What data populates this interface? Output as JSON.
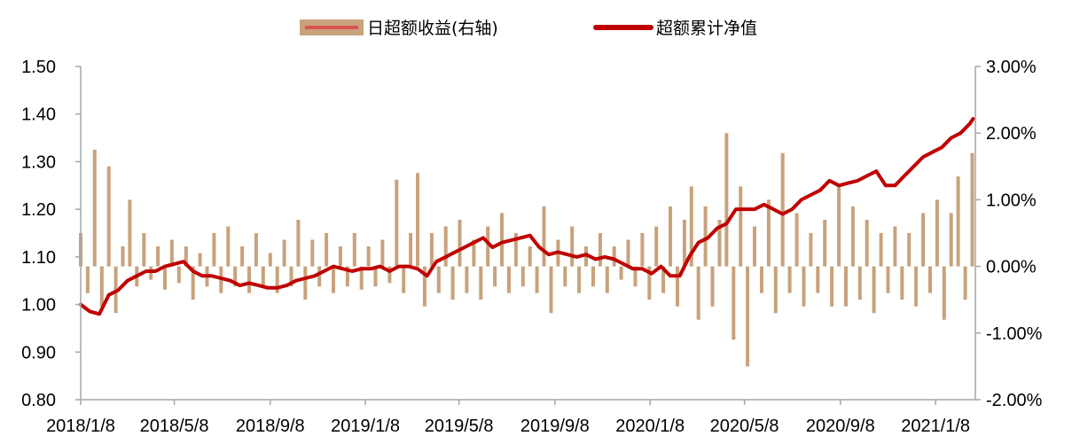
{
  "chart_data": {
    "type": "line",
    "title": "",
    "legend": {
      "placement": "top-center",
      "entries": [
        {
          "label": "日超额收益(右轴)",
          "series": "daily_excess_return"
        },
        {
          "label": "超额累计净值",
          "series": "cumulative_excess_nav"
        }
      ]
    },
    "x_axis": {
      "type": "date",
      "range": [
        "2018-01-08",
        "2021-02-28"
      ],
      "tick_dates": [
        "2018-01-08",
        "2018-05-08",
        "2018-09-08",
        "2019-01-08",
        "2019-05-08",
        "2019-09-08",
        "2020-01-08",
        "2020-05-08",
        "2020-09-08",
        "2021-01-08"
      ],
      "tick_labels": [
        "2018/1/8",
        "2018/5/8",
        "2018/9/8",
        "2019/1/8",
        "2019/5/8",
        "2019/9/8",
        "2020/1/8",
        "2020/5/8",
        "2020/9/8",
        "2021/1/8"
      ]
    },
    "y_left": {
      "range": [
        0.8,
        1.5
      ],
      "tick_values": [
        0.8,
        0.9,
        1.0,
        1.1,
        1.2,
        1.3,
        1.4,
        1.5
      ],
      "tick_labels": [
        "0.80",
        "0.90",
        "1.00",
        "1.10",
        "1.20",
        "1.30",
        "1.40",
        "1.50"
      ]
    },
    "y_right": {
      "range": [
        -2.0,
        3.0
      ],
      "unit": "%",
      "tick_values": [
        -2,
        -1,
        0,
        1,
        2,
        3
      ],
      "tick_labels": [
        "-2.00%",
        "-1.00%",
        "0.00%",
        "1.00%",
        "2.00%",
        "3.00%"
      ]
    },
    "grid": false,
    "series": [
      {
        "name": "日超额收益(右轴)",
        "type": "bar",
        "axis": "right",
        "color": "#C8A27C",
        "note": "approximate; daily excess return in %",
        "x": [
          "2018-01-08",
          "2018-01-17",
          "2018-01-26",
          "2018-02-04",
          "2018-02-13",
          "2018-02-22",
          "2018-03-03",
          "2018-03-12",
          "2018-03-21",
          "2018-03-30",
          "2018-04-08",
          "2018-04-17",
          "2018-04-26",
          "2018-05-05",
          "2018-05-14",
          "2018-05-23",
          "2018-06-01",
          "2018-06-10",
          "2018-06-19",
          "2018-06-28",
          "2018-07-07",
          "2018-07-16",
          "2018-07-25",
          "2018-08-03",
          "2018-08-12",
          "2018-08-21",
          "2018-08-30",
          "2018-09-08",
          "2018-09-17",
          "2018-09-26",
          "2018-10-05",
          "2018-10-14",
          "2018-10-23",
          "2018-11-01",
          "2018-11-10",
          "2018-11-19",
          "2018-11-28",
          "2018-12-07",
          "2018-12-16",
          "2018-12-25",
          "2019-01-03",
          "2019-01-12",
          "2019-01-21",
          "2019-01-30",
          "2019-02-08",
          "2019-02-17",
          "2019-02-26",
          "2019-03-07",
          "2019-03-16",
          "2019-03-25",
          "2019-04-03",
          "2019-04-12",
          "2019-04-21",
          "2019-04-30",
          "2019-05-09",
          "2019-05-18",
          "2019-05-27",
          "2019-06-05",
          "2019-06-14",
          "2019-06-23",
          "2019-07-02",
          "2019-07-11",
          "2019-07-20",
          "2019-07-29",
          "2019-08-07",
          "2019-08-16",
          "2019-08-25",
          "2019-09-03",
          "2019-09-12",
          "2019-09-21",
          "2019-09-30",
          "2019-10-09",
          "2019-10-18",
          "2019-10-27",
          "2019-11-05",
          "2019-11-14",
          "2019-11-23",
          "2019-12-02",
          "2019-12-11",
          "2019-12-20",
          "2019-12-29",
          "2020-01-07",
          "2020-01-16",
          "2020-01-25",
          "2020-02-03",
          "2020-02-12",
          "2020-02-21",
          "2020-03-01",
          "2020-03-10",
          "2020-03-19",
          "2020-03-28",
          "2020-04-06",
          "2020-04-15",
          "2020-04-24",
          "2020-05-03",
          "2020-05-12",
          "2020-05-21",
          "2020-05-30",
          "2020-06-08",
          "2020-06-17",
          "2020-06-26",
          "2020-07-05",
          "2020-07-14",
          "2020-07-23",
          "2020-08-01",
          "2020-08-10",
          "2020-08-19",
          "2020-08-28",
          "2020-09-06",
          "2020-09-15",
          "2020-09-24",
          "2020-10-03",
          "2020-10-12",
          "2020-10-21",
          "2020-10-30",
          "2020-11-08",
          "2020-11-17",
          "2020-11-26",
          "2020-12-05",
          "2020-12-14",
          "2020-12-23",
          "2021-01-01",
          "2021-01-10",
          "2021-01-19",
          "2021-01-28",
          "2021-02-06",
          "2021-02-15",
          "2021-02-24"
        ],
        "values": [
          0.5,
          -0.4,
          1.75,
          -0.6,
          1.5,
          -0.7,
          0.3,
          1.0,
          -0.3,
          0.5,
          -0.2,
          0.3,
          -0.35,
          0.4,
          -0.25,
          0.3,
          -0.5,
          0.2,
          -0.3,
          0.5,
          -0.4,
          0.6,
          -0.3,
          0.3,
          -0.4,
          0.5,
          -0.3,
          0.2,
          -0.4,
          0.4,
          -0.3,
          0.7,
          -0.5,
          0.4,
          -0.3,
          0.5,
          -0.4,
          0.3,
          -0.3,
          0.5,
          -0.35,
          0.3,
          -0.3,
          0.4,
          -0.25,
          1.3,
          -0.4,
          0.5,
          1.4,
          -0.6,
          0.5,
          -0.4,
          0.6,
          -0.5,
          0.7,
          -0.4,
          0.4,
          -0.5,
          0.6,
          -0.3,
          0.8,
          -0.4,
          0.5,
          -0.3,
          0.3,
          -0.4,
          0.9,
          -0.7,
          0.4,
          -0.3,
          0.6,
          -0.4,
          0.3,
          -0.3,
          0.5,
          -0.4,
          0.3,
          -0.2,
          0.4,
          -0.3,
          0.5,
          -0.5,
          0.6,
          -0.4,
          0.9,
          -0.6,
          0.7,
          1.2,
          -0.8,
          0.9,
          -0.6,
          0.7,
          2.0,
          -1.1,
          1.2,
          -1.5,
          0.6,
          -0.4,
          1.0,
          -0.7,
          1.7,
          -0.4,
          0.8,
          -0.6,
          0.5,
          -0.4,
          0.7,
          -0.6,
          1.2,
          -0.6,
          0.9,
          -0.5,
          0.7,
          -0.7,
          0.5,
          -0.4,
          0.6,
          -0.5,
          0.5,
          -0.6,
          0.8,
          -0.4,
          1.0,
          -0.8,
          0.8,
          1.35,
          -0.5,
          1.7
        ]
      },
      {
        "name": "超额累计净值",
        "type": "line",
        "axis": "left",
        "color": "#C00000",
        "note": "approximate",
        "x": [
          "2018-01-08",
          "2018-01-20",
          "2018-02-01",
          "2018-02-13",
          "2018-02-25",
          "2018-03-09",
          "2018-03-21",
          "2018-04-02",
          "2018-04-14",
          "2018-04-26",
          "2018-05-08",
          "2018-05-20",
          "2018-06-01",
          "2018-06-13",
          "2018-06-25",
          "2018-07-07",
          "2018-07-19",
          "2018-07-31",
          "2018-08-12",
          "2018-08-24",
          "2018-09-05",
          "2018-09-17",
          "2018-09-29",
          "2018-10-11",
          "2018-10-23",
          "2018-11-04",
          "2018-11-16",
          "2018-11-28",
          "2018-12-10",
          "2018-12-22",
          "2019-01-03",
          "2019-01-15",
          "2019-01-27",
          "2019-02-08",
          "2019-02-20",
          "2019-03-04",
          "2019-03-16",
          "2019-03-28",
          "2019-04-09",
          "2019-04-21",
          "2019-05-03",
          "2019-05-15",
          "2019-05-27",
          "2019-06-08",
          "2019-06-20",
          "2019-07-02",
          "2019-07-14",
          "2019-07-26",
          "2019-08-07",
          "2019-08-19",
          "2019-08-31",
          "2019-09-12",
          "2019-09-24",
          "2019-10-06",
          "2019-10-18",
          "2019-10-30",
          "2019-11-11",
          "2019-11-23",
          "2019-12-05",
          "2019-12-17",
          "2019-12-29",
          "2020-01-10",
          "2020-01-22",
          "2020-02-03",
          "2020-02-15",
          "2020-02-27",
          "2020-03-10",
          "2020-03-22",
          "2020-04-03",
          "2020-04-15",
          "2020-04-27",
          "2020-05-09",
          "2020-05-21",
          "2020-06-02",
          "2020-06-14",
          "2020-06-26",
          "2020-07-08",
          "2020-07-20",
          "2020-08-01",
          "2020-08-13",
          "2020-08-25",
          "2020-09-06",
          "2020-09-18",
          "2020-09-30",
          "2020-10-12",
          "2020-10-24",
          "2020-11-05",
          "2020-11-17",
          "2020-11-29",
          "2020-12-11",
          "2020-12-23",
          "2021-01-04",
          "2021-01-16",
          "2021-01-28",
          "2021-02-09",
          "2021-02-21",
          "2021-02-25"
        ],
        "values": [
          1.0,
          0.985,
          0.98,
          1.02,
          1.03,
          1.05,
          1.06,
          1.07,
          1.07,
          1.08,
          1.085,
          1.09,
          1.07,
          1.06,
          1.06,
          1.055,
          1.05,
          1.04,
          1.045,
          1.04,
          1.035,
          1.035,
          1.04,
          1.05,
          1.055,
          1.06,
          1.07,
          1.08,
          1.075,
          1.07,
          1.075,
          1.075,
          1.08,
          1.07,
          1.08,
          1.08,
          1.075,
          1.06,
          1.09,
          1.1,
          1.11,
          1.12,
          1.13,
          1.14,
          1.12,
          1.13,
          1.135,
          1.14,
          1.145,
          1.12,
          1.105,
          1.11,
          1.105,
          1.1,
          1.105,
          1.095,
          1.1,
          1.095,
          1.085,
          1.075,
          1.075,
          1.065,
          1.08,
          1.06,
          1.06,
          1.1,
          1.13,
          1.14,
          1.16,
          1.17,
          1.2,
          1.2,
          1.2,
          1.21,
          1.2,
          1.19,
          1.2,
          1.22,
          1.23,
          1.24,
          1.26,
          1.25,
          1.255,
          1.26,
          1.27,
          1.28,
          1.25,
          1.25,
          1.27,
          1.29,
          1.31,
          1.32,
          1.33,
          1.35,
          1.36,
          1.38,
          1.39
        ]
      }
    ]
  }
}
